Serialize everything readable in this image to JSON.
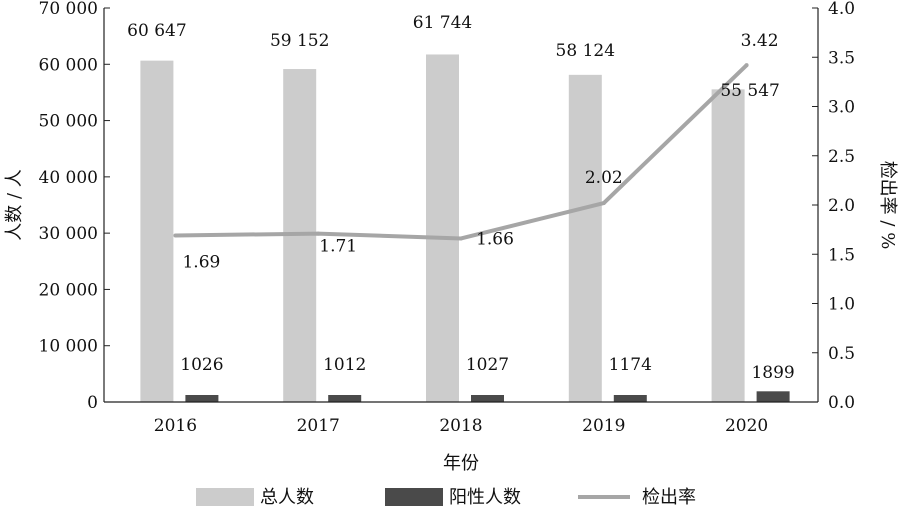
{
  "chart_data": {
    "type": "bar",
    "categories": [
      "2016",
      "2017",
      "2018",
      "2019",
      "2020"
    ],
    "series": [
      {
        "name": "总人数",
        "type": "bar",
        "axis": "left",
        "color": "#cccccc",
        "values": [
          60647,
          59152,
          61744,
          58124,
          55547
        ],
        "labels": [
          "60 647",
          "59 152",
          "61 744",
          "58 124",
          "55 547"
        ]
      },
      {
        "name": "阳性人数",
        "type": "bar",
        "axis": "left",
        "color": "#4a4a4a",
        "values": [
          1026,
          1012,
          1027,
          1174,
          1899
        ],
        "labels": [
          "1026",
          "1012",
          "1027",
          "1174",
          "1899"
        ]
      },
      {
        "name": "检出率",
        "type": "line",
        "axis": "right",
        "color": "#a6a6a6",
        "values": [
          1.69,
          1.71,
          1.66,
          2.02,
          3.42
        ],
        "labels": [
          "1.69",
          "1.71",
          "1.66",
          "2.02",
          "3.42"
        ]
      }
    ],
    "xlabel": "年份",
    "ylabel": "人数 / 人",
    "y2label": "检出率 / %",
    "ylim": [
      0,
      70000
    ],
    "y2lim": [
      0,
      4.0
    ],
    "yticks": [
      0,
      10000,
      20000,
      30000,
      40000,
      50000,
      60000,
      70000
    ],
    "yticklabels": [
      "0",
      "10 000",
      "20 000",
      "30 000",
      "40 000",
      "50 000",
      "60 000",
      "70 000"
    ],
    "y2ticks": [
      0,
      0.5,
      1.0,
      1.5,
      2.0,
      2.5,
      3.0,
      3.5,
      4.0
    ],
    "y2ticklabels": [
      "0.0",
      "0.5",
      "1.0",
      "1.5",
      "2.0",
      "2.5",
      "3.0",
      "3.5",
      "4.0"
    ],
    "grid": false,
    "legend_position": "bottom"
  }
}
